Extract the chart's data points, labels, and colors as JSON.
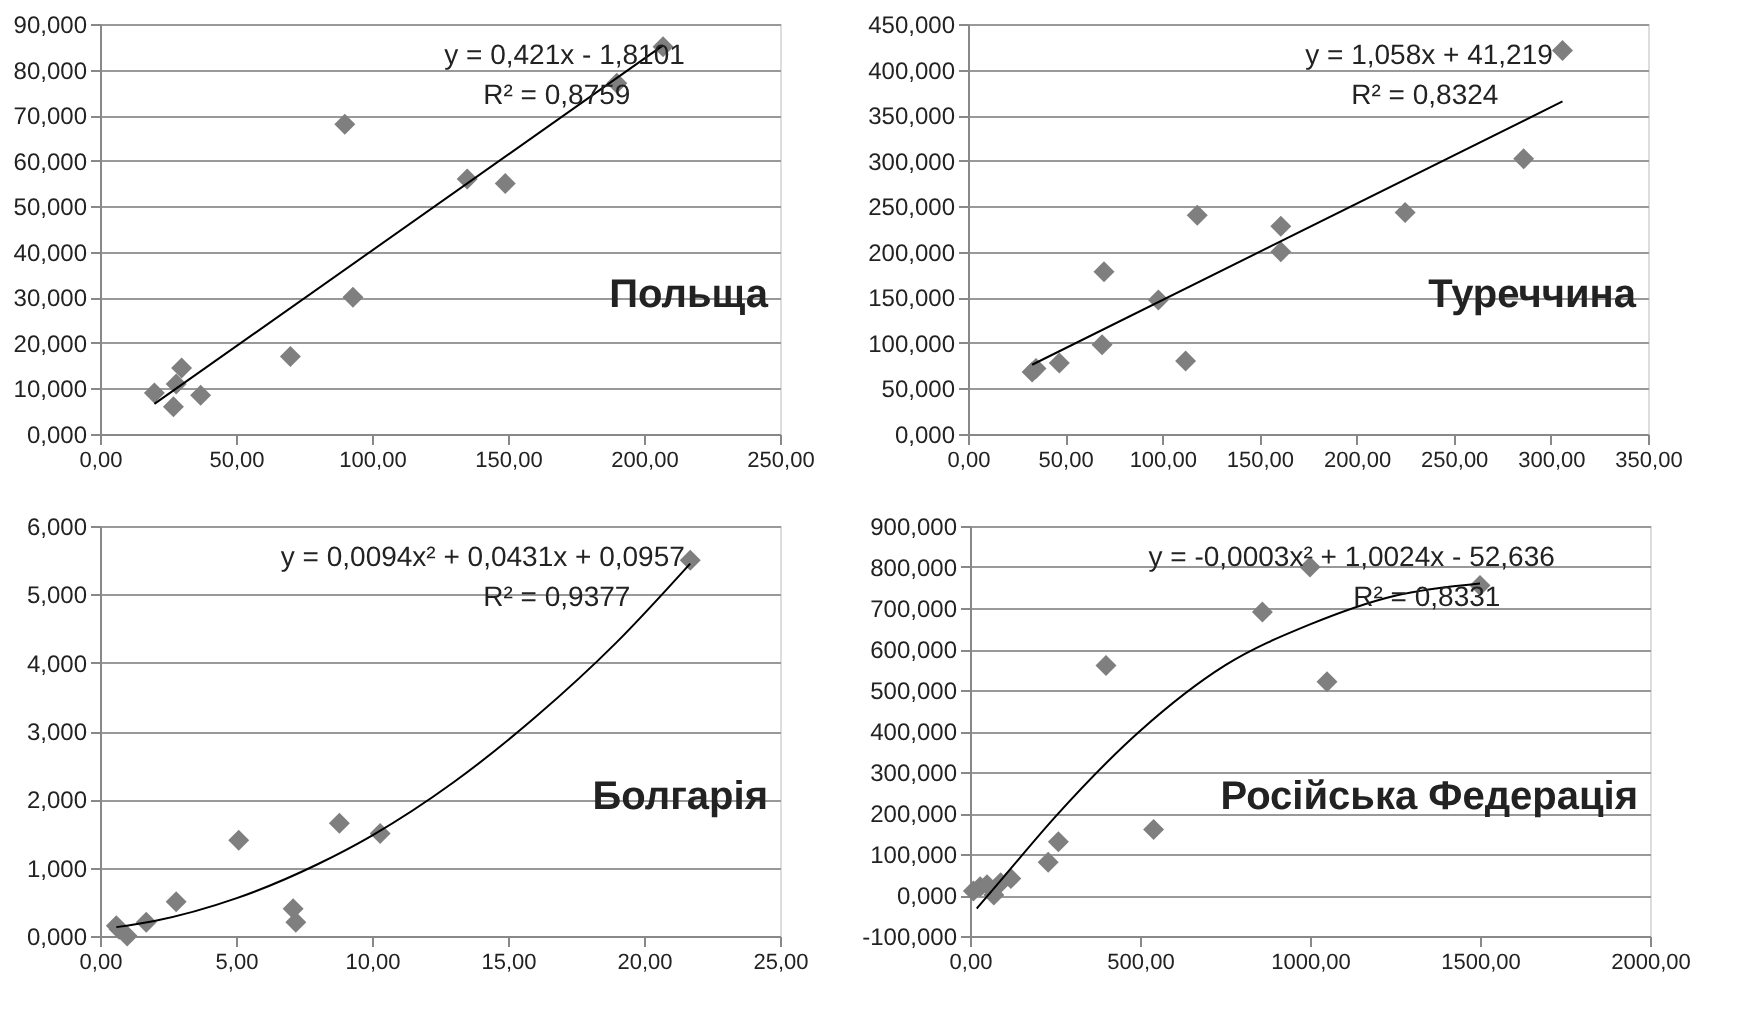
{
  "chart_data": [
    {
      "type": "scatter",
      "title": "Польща",
      "annotations": [
        "y = 0,421x - 1,8101",
        "R² = 0,8759"
      ],
      "grid": "y",
      "marker": "diamond",
      "xlim": [
        0,
        250
      ],
      "xticks": [
        {
          "value": 0,
          "label": "0,00"
        },
        {
          "value": 50,
          "label": "50,00"
        },
        {
          "value": 100,
          "label": "100,00"
        },
        {
          "value": 150,
          "label": "150,00"
        },
        {
          "value": 200,
          "label": "200,00"
        },
        {
          "value": 250,
          "label": "250,00"
        }
      ],
      "ylim": [
        0,
        90
      ],
      "yticks": [
        {
          "value": 0,
          "label": "0,000"
        },
        {
          "value": 10,
          "label": "10,000"
        },
        {
          "value": 20,
          "label": "20,000"
        },
        {
          "value": 30,
          "label": "30,000"
        },
        {
          "value": 40,
          "label": "40,000"
        },
        {
          "value": 50,
          "label": "50,000"
        },
        {
          "value": 60,
          "label": "60,000"
        },
        {
          "value": 70,
          "label": "70,000"
        },
        {
          "value": 80,
          "label": "80,000"
        },
        {
          "value": 90,
          "label": "90,000"
        }
      ],
      "series": [
        {
          "color": "#7f7f7f",
          "x": [
            20,
            27,
            30,
            28,
            37,
            70,
            90,
            93,
            135,
            149,
            190,
            207
          ],
          "values": [
            9,
            6,
            14.5,
            11,
            8.5,
            17,
            68,
            30,
            56,
            55,
            77,
            85
          ]
        },
        {
          "type": "line",
          "color": "#000000",
          "marker": "none",
          "x": [
            20,
            207
          ],
          "values": [
            6.6,
            85.3
          ]
        }
      ]
    },
    {
      "type": "scatter",
      "title": "Туреччина",
      "annotations": [
        "y = 1,058x + 41,219",
        "R² = 0,8324"
      ],
      "grid": "y",
      "marker": "diamond",
      "xlim": [
        0,
        350
      ],
      "xticks": [
        {
          "value": 0,
          "label": "0,00"
        },
        {
          "value": 50,
          "label": "50,00"
        },
        {
          "value": 100,
          "label": "100,00"
        },
        {
          "value": 150,
          "label": "150,00"
        },
        {
          "value": 200,
          "label": "200,00"
        },
        {
          "value": 250,
          "label": "250,00"
        },
        {
          "value": 300,
          "label": "300,00"
        },
        {
          "value": 350,
          "label": "350,00"
        }
      ],
      "ylim": [
        0,
        450
      ],
      "yticks": [
        {
          "value": 0,
          "label": "0,000"
        },
        {
          "value": 50,
          "label": "50,000"
        },
        {
          "value": 100,
          "label": "100,000"
        },
        {
          "value": 150,
          "label": "150,000"
        },
        {
          "value": 200,
          "label": "200,000"
        },
        {
          "value": 250,
          "label": "250,000"
        },
        {
          "value": 300,
          "label": "300,000"
        },
        {
          "value": 350,
          "label": "350,000"
        },
        {
          "value": 400,
          "label": "400,000"
        },
        {
          "value": 450,
          "label": "450,000"
        }
      ],
      "series": [
        {
          "color": "#7f7f7f",
          "x": [
            33,
            35,
            47,
            69,
            70,
            98,
            112,
            118,
            161,
            161,
            225,
            286,
            306
          ],
          "values": [
            68,
            72,
            78,
            98,
            178,
            147,
            80,
            240,
            228,
            200,
            243,
            302,
            421
          ]
        },
        {
          "type": "line",
          "color": "#000000",
          "marker": "none",
          "x": [
            33,
            306
          ],
          "values": [
            76,
            365
          ]
        }
      ]
    },
    {
      "type": "scatter",
      "title": "Болгарія",
      "annotations": [
        "y = 0,0094x² + 0,0431x + 0,0957",
        "R² = 0,9377"
      ],
      "grid": "y",
      "marker": "diamond",
      "xlim": [
        0,
        25
      ],
      "xticks": [
        {
          "value": 0,
          "label": "0,00"
        },
        {
          "value": 5,
          "label": "5,00"
        },
        {
          "value": 10,
          "label": "10,00"
        },
        {
          "value": 15,
          "label": "15,00"
        },
        {
          "value": 20,
          "label": "20,00"
        },
        {
          "value": 25,
          "label": "25,00"
        }
      ],
      "ylim": [
        0,
        6
      ],
      "yticks": [
        {
          "value": 0,
          "label": "0,000"
        },
        {
          "value": 1,
          "label": "1,000"
        },
        {
          "value": 2,
          "label": "2,000"
        },
        {
          "value": 3,
          "label": "3,000"
        },
        {
          "value": 4,
          "label": "4,000"
        },
        {
          "value": 5,
          "label": "5,000"
        },
        {
          "value": 6,
          "label": "6,000"
        }
      ],
      "series": [
        {
          "color": "#7f7f7f",
          "x": [
            0.6,
            0.7,
            1.0,
            1.7,
            2.8,
            5.1,
            7.1,
            7.2,
            8.8,
            10.3,
            21.7
          ],
          "values": [
            0.15,
            0.1,
            0.0,
            0.2,
            0.5,
            1.4,
            0.4,
            0.2,
            1.65,
            1.5,
            5.5
          ]
        },
        {
          "type": "line",
          "color": "#000000",
          "marker": "none",
          "x": [
            0.6,
            2,
            5,
            8,
            10,
            13,
            16,
            19,
            21.7
          ],
          "values": [
            0.13,
            0.22,
            0.55,
            1.05,
            1.47,
            2.25,
            3.2,
            4.3,
            5.45
          ]
        }
      ]
    },
    {
      "type": "scatter",
      "title": "Російська Федерація",
      "annotations": [
        "y = -0,0003x² + 1,0024x - 52,636",
        "R² = 0,8331"
      ],
      "grid": "y",
      "marker": "diamond",
      "xlim": [
        0,
        2000
      ],
      "xticks": [
        {
          "value": 0,
          "label": "0,00"
        },
        {
          "value": 500,
          "label": "500,00"
        },
        {
          "value": 1000,
          "label": "1000,00"
        },
        {
          "value": 1500,
          "label": "1500,00"
        },
        {
          "value": 2000,
          "label": "2000,00"
        }
      ],
      "ylim": [
        -100,
        900
      ],
      "yticks": [
        {
          "value": -100,
          "label": "-100,000"
        },
        {
          "value": 0,
          "label": "0,000"
        },
        {
          "value": 100,
          "label": "100,000"
        },
        {
          "value": 200,
          "label": "200,000"
        },
        {
          "value": 300,
          "label": "300,000"
        },
        {
          "value": 400,
          "label": "400,000"
        },
        {
          "value": 500,
          "label": "500,000"
        },
        {
          "value": 600,
          "label": "600,000"
        },
        {
          "value": 700,
          "label": "700,000"
        },
        {
          "value": 800,
          "label": "800,000"
        },
        {
          "value": 900,
          "label": "900,000"
        }
      ],
      "series": [
        {
          "color": "#7f7f7f",
          "x": [
            10,
            30,
            50,
            70,
            90,
            120,
            230,
            260,
            400,
            540,
            860,
            1000,
            1050,
            1500
          ],
          "values": [
            10,
            20,
            25,
            0,
            30,
            40,
            80,
            130,
            560,
            160,
            690,
            800,
            520,
            755
          ]
        },
        {
          "type": "line",
          "color": "#000000",
          "marker": "none",
          "x": [
            20,
            100,
            250,
            500,
            750,
            1000,
            1250,
            1500
          ],
          "values": [
            -33,
            45,
            190,
            400,
            560,
            660,
            730,
            760
          ]
        }
      ]
    }
  ]
}
